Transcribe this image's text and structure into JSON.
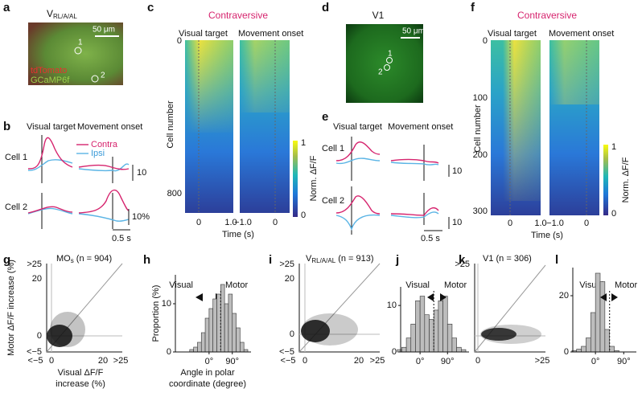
{
  "a": {
    "label": "a",
    "title": "V",
    "title_sub": "RL/A/AL",
    "scale": "50 μm",
    "roi1": "1",
    "roi2": "2",
    "stain1": "tdTomato",
    "stain2": "GCaMP6f"
  },
  "b": {
    "label": "b",
    "col1": "Visual target",
    "col2": "Movement onset",
    "row1": "Cell 1",
    "row2": "Cell 2",
    "legend": [
      "Contra",
      "Ipsi"
    ],
    "scale_y1": 10,
    "scale_y2": "10%",
    "scale_x": "0.5 s"
  },
  "c": {
    "label": "c",
    "title": "Contraversive",
    "col1": "Visual target",
    "col2": "Movement onset",
    "ylabel": "Cell number",
    "yticks": [
      0,
      800
    ],
    "xticks": [
      0,
      "1.0",
      "−1.0",
      0
    ],
    "xlabel": "Time (s)",
    "cbar_ticks": [
      1,
      0
    ],
    "cbar_label": "Norm. ΔF/F"
  },
  "d": {
    "label": "d",
    "title": "V1",
    "scale": "50 μm",
    "roi1": "1",
    "roi2": "2"
  },
  "e": {
    "label": "e",
    "col1": "Visual target",
    "col2": "Movement onset",
    "row1": "Cell 1",
    "row2": "Cell 2",
    "scale_y1": 10,
    "scale_y2": 10,
    "scale_x": "0.5 s"
  },
  "f": {
    "label": "f",
    "title": "Contraversive",
    "col1": "Visual target",
    "col2": "Movement onset",
    "ylabel": "Cell number",
    "yticks": [
      0,
      100,
      200,
      300
    ],
    "xticks": [
      0,
      "1.0",
      "−1.0",
      0
    ],
    "xlabel": "Time (s)",
    "cbar_ticks": [
      1,
      0
    ],
    "cbar_label": "Norm. ΔF/F"
  },
  "g": {
    "label": "g",
    "title": "MO",
    "title_sub": "s",
    "title_rest": " (n = 904)",
    "ylabel": "Motor ΔF/F increase (%)",
    "xlabel": [
      "Visual ΔF/F",
      "increase (%)"
    ],
    "yticks": [
      ">25",
      20,
      0,
      "<−5"
    ],
    "xticks": [
      "<−5",
      0,
      20,
      ">25"
    ]
  },
  "h": {
    "label": "h",
    "left": "Visual",
    "right": "Motor",
    "ylabel": "Proportion (%)",
    "xlabel": [
      "Angle in polar",
      "coordinate (degree)"
    ],
    "yticks": [
      0,
      10
    ],
    "xticks": [
      {
        "value": 0,
        "label": "0°"
      },
      {
        "value": 90,
        "label": "90°"
      }
    ],
    "xlim": [
      -90,
      150
    ],
    "ylim": [
      0,
      16
    ],
    "divider": 45,
    "bins": [
      -90,
      -75,
      -60,
      -45,
      -30,
      -15,
      0,
      15,
      30,
      45,
      60,
      75,
      90,
      105,
      120,
      135,
      150
    ],
    "values": [
      0,
      0.5,
      1,
      2,
      4,
      7,
      9,
      11,
      12,
      14,
      10,
      12,
      8,
      5,
      2,
      0.5
    ]
  },
  "i": {
    "label": "i",
    "title": "V",
    "title_sub": "RL/A/AL",
    "title_rest": " (n = 913)",
    "yticks": [
      ">25",
      20,
      0,
      "<−5"
    ],
    "xticks": [
      "<−5",
      0,
      20,
      ">25"
    ]
  },
  "j": {
    "label": "j",
    "left": "Visual",
    "right": "Motor",
    "yticks": [
      0,
      10
    ],
    "xticks": [
      {
        "value": 0,
        "label": "0°"
      },
      {
        "value": 90,
        "label": "90°"
      }
    ],
    "xlim": [
      -90,
      150
    ],
    "ylim": [
      0,
      14
    ],
    "divider": 45,
    "bins": [
      -90,
      -75,
      -60,
      -45,
      -30,
      -15,
      0,
      15,
      30,
      45,
      60,
      75,
      90,
      105,
      120,
      135,
      150
    ],
    "values": [
      0,
      0.5,
      1,
      3,
      6,
      11,
      12,
      8,
      7,
      9,
      11,
      12,
      6,
      3,
      1,
      0.5
    ]
  },
  "k": {
    "label": "k",
    "title": "V1 (n = 306)",
    "yticks": [
      ">25"
    ],
    "xticks": [
      0,
      ">25"
    ]
  },
  "l": {
    "label": "l",
    "left": "Visual",
    "right": "Motor",
    "yticks": [
      0,
      20
    ],
    "xticks": [
      {
        "value": 0,
        "label": "0°"
      },
      {
        "value": 90,
        "label": "90°"
      }
    ],
    "xlim": [
      -90,
      120
    ],
    "ylim": [
      0,
      30
    ],
    "divider": 45,
    "bins": [
      -90,
      -75,
      -60,
      -45,
      -30,
      -15,
      0,
      15,
      30,
      45,
      60,
      75,
      90,
      105,
      120
    ],
    "values": [
      0,
      0.5,
      1,
      2,
      5,
      14,
      28,
      25,
      8,
      2,
      0.5,
      0,
      0,
      0
    ]
  }
}
